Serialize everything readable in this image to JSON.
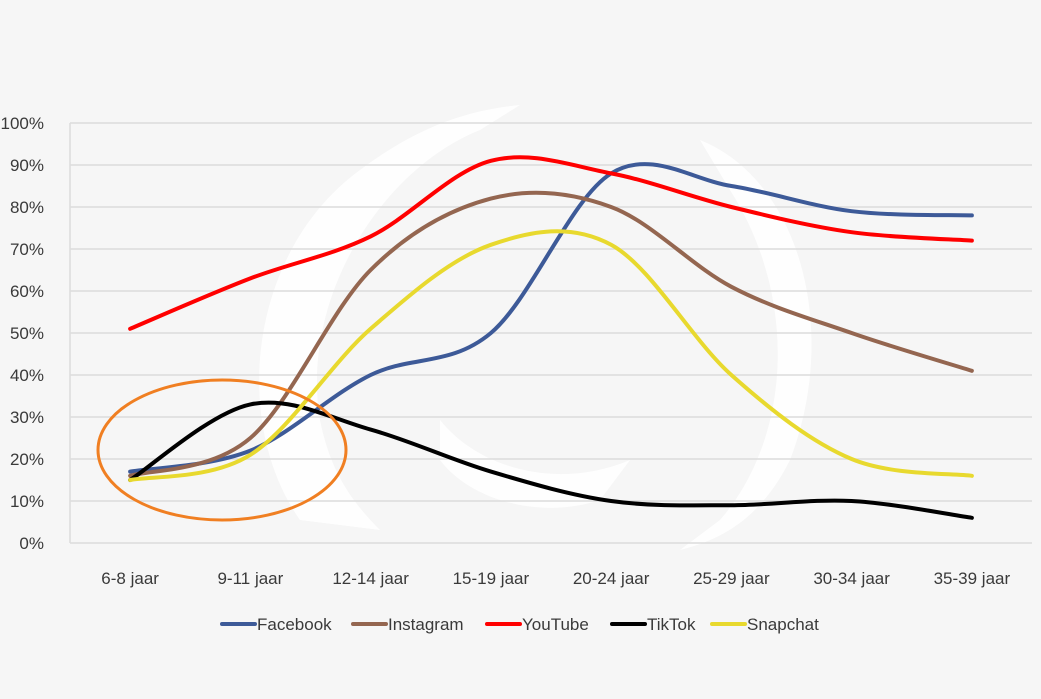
{
  "chart_data": {
    "type": "line",
    "title": "",
    "xlabel": "",
    "ylabel": "",
    "ylim": [
      0,
      100
    ],
    "y_ticks": [
      "0%",
      "10%",
      "20%",
      "30%",
      "40%",
      "50%",
      "60%",
      "70%",
      "80%",
      "90%",
      "100%"
    ],
    "categories": [
      "6-8 jaar",
      "9-11 jaar",
      "12-14 jaar",
      "15-19 jaar",
      "20-24 jaar",
      "25-29 jaar",
      "30-34 jaar",
      "35-39 jaar"
    ],
    "series": [
      {
        "name": "Facebook",
        "color": "#3d5a98",
        "values": [
          17,
          22,
          40,
          50,
          88,
          85,
          79,
          78
        ]
      },
      {
        "name": "Instagram",
        "color": "#946650",
        "values": [
          16,
          25,
          65,
          82,
          80,
          61,
          50,
          41
        ]
      },
      {
        "name": "YouTube",
        "color": "#ff0000",
        "values": [
          51,
          63,
          73,
          91,
          88,
          80,
          74,
          72
        ]
      },
      {
        "name": "TikTok",
        "color": "#000000",
        "values": [
          15,
          33,
          27,
          17,
          10,
          9,
          10,
          6
        ]
      },
      {
        "name": "Snapchat",
        "color": "#e8d92e",
        "values": [
          15,
          21,
          51,
          71,
          71,
          40,
          20,
          16
        ]
      }
    ],
    "grid": true,
    "legend_position": "bottom",
    "annotations": [
      {
        "type": "ellipse",
        "color": "#f07f22",
        "region": "6-8 jaar to 9-11 jaar, 10%-38%"
      }
    ]
  }
}
